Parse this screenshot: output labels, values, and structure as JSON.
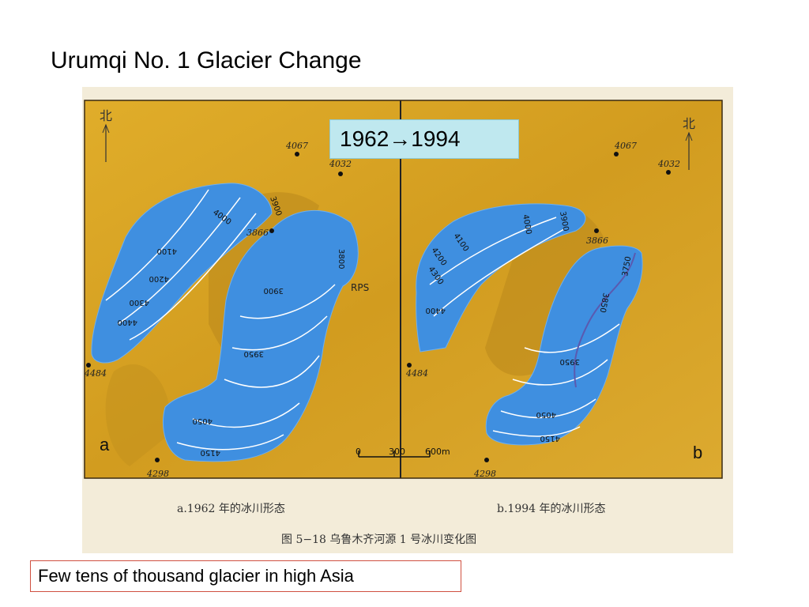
{
  "slide": {
    "title": "Urumqi No. 1 Glacier Change",
    "years_label": "1962→1994",
    "caption": "Few tens of thousand glacier in high Asia"
  },
  "figure": {
    "panel_a_letter": "a",
    "panel_b_letter": "b",
    "north_label": "北",
    "peaks": {
      "p4067": "4067",
      "p4032": "4032",
      "p3866": "3866",
      "p4484": "4484",
      "p4298": "4298"
    },
    "rps_label": "RPS",
    "scale_labels": [
      "0",
      "300",
      "600m"
    ],
    "contours_a": [
      "4000",
      "3900",
      "3800",
      "4100",
      "4200",
      "4300",
      "4400",
      "3900",
      "3950",
      "4050",
      "4150"
    ],
    "contours_b": [
      "4000",
      "3900",
      "4100",
      "4200",
      "4300",
      "4400",
      "3750",
      "3850",
      "3950",
      "4050",
      "4150"
    ],
    "caption_a": "a.1962 年的冰川形态",
    "caption_b": "b.1994 年的冰川形态",
    "figure_caption": "图 5−18   乌鲁木齐河源 1 号冰川变化图"
  },
  "colors": {
    "terrain": "#d9a520",
    "terrain_dark": "#b7871a",
    "glacier": "#3f8fe0",
    "contour": "#ffffff"
  }
}
